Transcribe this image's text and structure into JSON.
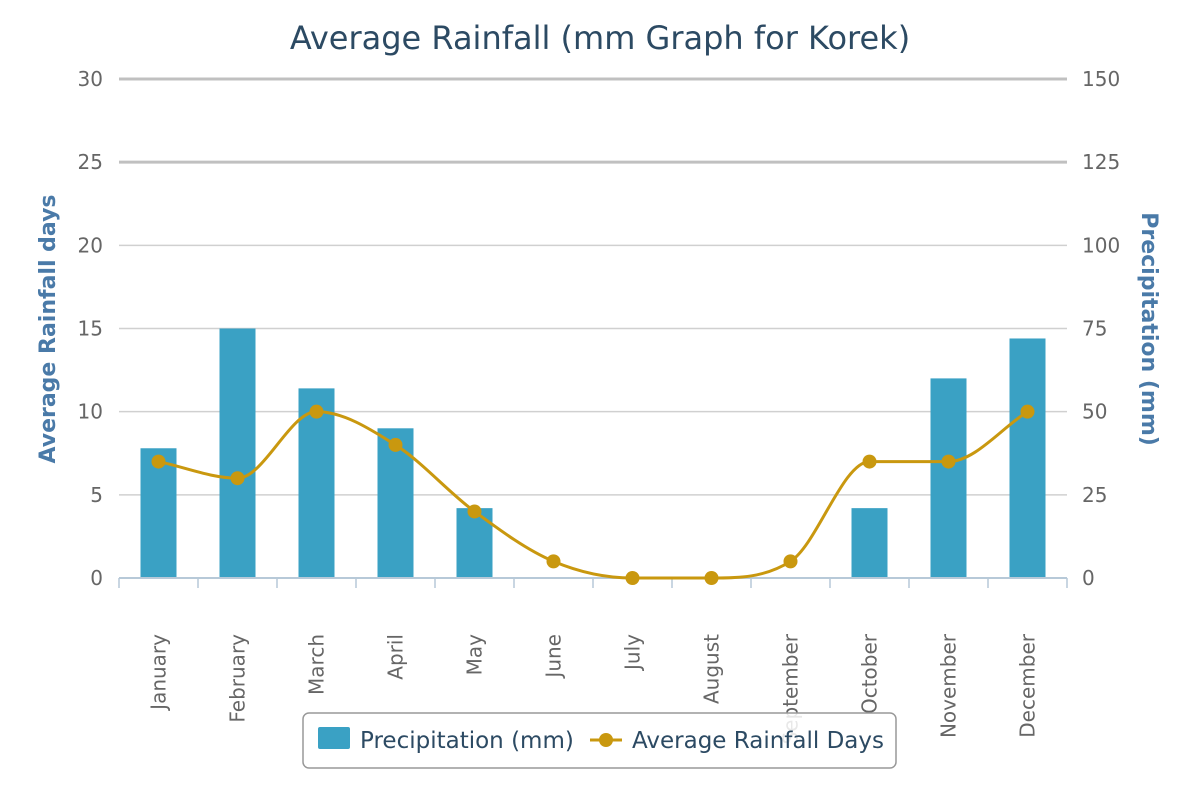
{
  "chart_data": {
    "type": "bar",
    "title": "Average Rainfall (mm Graph for Korek)",
    "categories": [
      "January",
      "February",
      "March",
      "April",
      "May",
      "June",
      "July",
      "August",
      "September",
      "October",
      "November",
      "December"
    ],
    "series": [
      {
        "name": "Precipitation (mm)",
        "type": "bar",
        "axis": "right",
        "color": "#3aa1c4",
        "values": [
          39,
          75,
          57,
          45,
          21,
          0,
          0,
          0,
          0,
          21,
          60,
          72
        ]
      },
      {
        "name": "Average Rainfall Days",
        "type": "line",
        "axis": "left",
        "color": "#c9980f",
        "values": [
          7,
          6,
          10,
          8,
          4,
          1,
          0,
          0,
          1,
          7,
          7,
          10
        ]
      }
    ],
    "y_left": {
      "label": "Average Rainfall days",
      "min": 0,
      "max": 30,
      "ticks": [
        "0",
        "5",
        "10",
        "15",
        "20",
        "25",
        "30"
      ]
    },
    "y_right": {
      "label": "Precipitation (mm)",
      "min": 0,
      "max": 150,
      "ticks": [
        "0",
        "25",
        "50",
        "75",
        "100",
        "125",
        "150"
      ]
    },
    "grid": true,
    "legend": "bottom-center"
  }
}
